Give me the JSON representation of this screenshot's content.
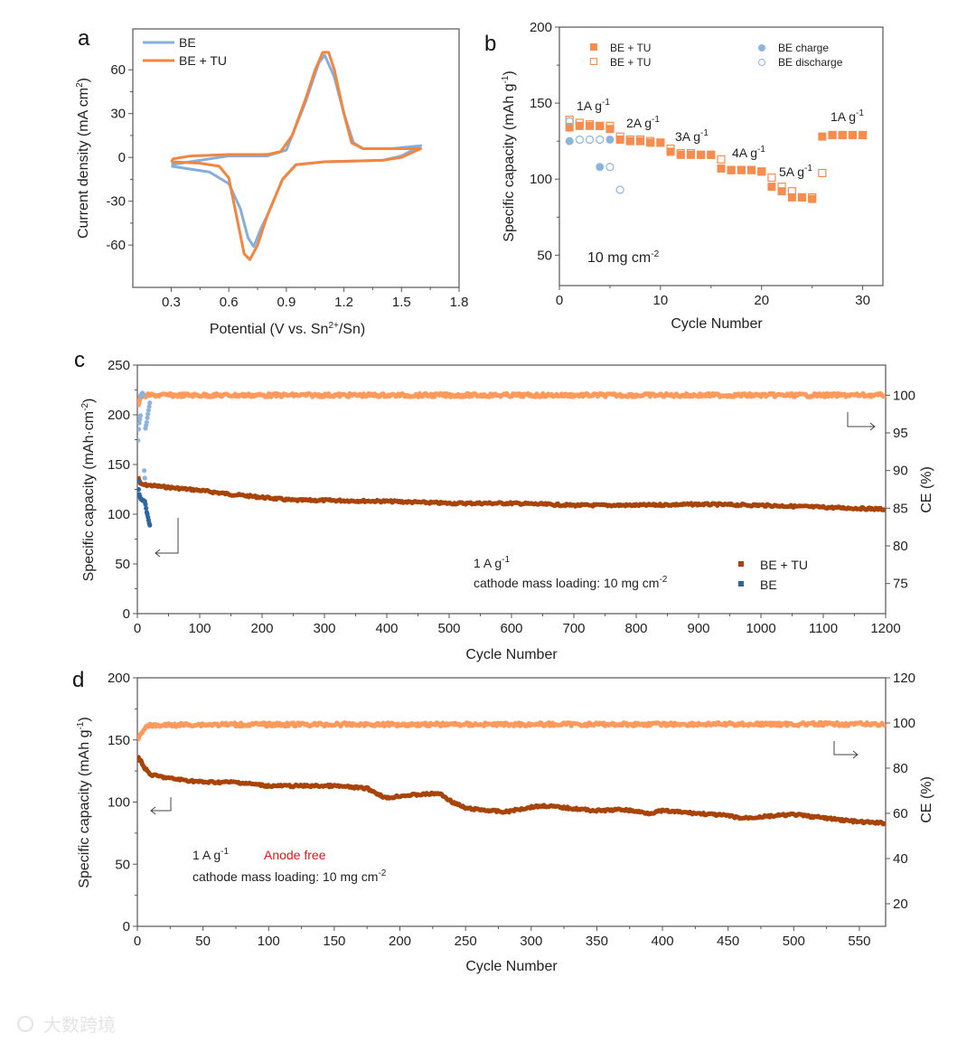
{
  "colors": {
    "orange": "#F68D4E",
    "orange_light": "#FF9A5C",
    "brown": "#A84409",
    "blue_light": "#8FB4DC",
    "blue_dark": "#2E66A3",
    "cv_blue": "#86AEDB",
    "cv_orange": "#F2853F",
    "red": "#E8141B"
  },
  "watermark": "大数跨境",
  "chart_data": [
    {
      "panel": "a",
      "type": "line",
      "panel_label": "a",
      "xlabel": "Potential (V vs. Sn",
      "xlabel_sup": "2+",
      "xlabel_end": "/Sn)",
      "ylabel": "Current density (mA cm",
      "ylabel_sup": "2",
      "ylabel_end": ")",
      "xlim": [
        0.1,
        1.8
      ],
      "ylim": [
        -89,
        88
      ],
      "xticks": [
        0.3,
        0.6,
        0.9,
        1.2,
        1.5,
        1.8
      ],
      "yticks": [
        -60,
        -30,
        0,
        30,
        60
      ],
      "legend": [
        "BE",
        "BE + TU"
      ],
      "legend_position": "top-left",
      "series": [
        {
          "name": "BE",
          "color_key": "cv_blue",
          "x": [
            0.3,
            0.4,
            0.5,
            0.6,
            0.8,
            0.9,
            1.0,
            1.07,
            1.1,
            1.15,
            1.2,
            1.25,
            1.3,
            1.45,
            1.6,
            1.6,
            1.5,
            1.4,
            1.1,
            0.95,
            0.88,
            0.8,
            0.77,
            0.73,
            0.7,
            0.66,
            0.6,
            0.5,
            0.4,
            0.3
          ],
          "y": [
            -5,
            -3,
            -1,
            1,
            1,
            5,
            38,
            65,
            70,
            55,
            30,
            10,
            6,
            6,
            8,
            8,
            1,
            -2,
            -3,
            -5,
            -15,
            -40,
            -48,
            -61,
            -55,
            -35,
            -18,
            -10,
            -8,
            -6
          ]
        },
        {
          "name": "BE + TU",
          "color_key": "cv_orange",
          "x": [
            0.3,
            0.31,
            0.4,
            0.6,
            0.8,
            0.87,
            0.93,
            1.0,
            1.05,
            1.09,
            1.12,
            1.15,
            1.2,
            1.24,
            1.3,
            1.5,
            1.6,
            1.6,
            1.5,
            1.4,
            1.1,
            0.95,
            0.88,
            0.8,
            0.75,
            0.71,
            0.68,
            0.64,
            0.6,
            0.55,
            0.45,
            0.3,
            0.3
          ],
          "y": [
            -3,
            -1,
            1,
            2,
            2,
            4,
            15,
            40,
            60,
            72,
            72,
            60,
            30,
            10,
            6,
            6,
            6,
            6,
            0,
            -2,
            -3,
            -5,
            -15,
            -40,
            -60,
            -70,
            -66,
            -40,
            -14,
            -6,
            -4,
            -3,
            -3
          ]
        }
      ]
    },
    {
      "panel": "b",
      "type": "scatter",
      "panel_label": "b",
      "xlabel": "Cycle Number",
      "ylabel": "Specific capacity (mAh g",
      "ylabel_sup": "-1",
      "ylabel_end": ")",
      "xlim": [
        0,
        32
      ],
      "ylim": [
        30,
        200
      ],
      "xticks": [
        0,
        10,
        20,
        30
      ],
      "yticks": [
        50,
        100,
        150,
        200
      ],
      "legend_position": "top",
      "annotations": [
        {
          "text": "1A g",
          "sup": "-1"
        },
        {
          "text": "2A g",
          "sup": "-1"
        },
        {
          "text": "3A g",
          "sup": "-1"
        },
        {
          "text": "4A g",
          "sup": "-1"
        },
        {
          "text": "5A g",
          "sup": "-1"
        },
        {
          "text": "1A g",
          "sup": "-1"
        }
      ],
      "loading_text": "10 mg cm",
      "loading_sup": "-2",
      "series": [
        {
          "name": "BE + TU",
          "marker": "filled-square",
          "color_key": "orange",
          "x": [
            1,
            2,
            3,
            4,
            5,
            6,
            7,
            8,
            9,
            10,
            11,
            12,
            13,
            14,
            15,
            16,
            17,
            18,
            19,
            20,
            21,
            22,
            23,
            24,
            25,
            26,
            27,
            28,
            29,
            30
          ],
          "y": [
            134,
            135,
            135,
            135,
            133,
            126,
            125,
            125,
            124,
            124,
            118,
            116,
            116,
            116,
            116,
            107,
            106,
            106,
            106,
            105,
            95,
            92,
            88,
            88,
            87,
            128,
            129,
            129,
            129,
            129
          ]
        },
        {
          "name": "BE + TU",
          "marker": "open-square",
          "color_key": "orange",
          "x": [
            1,
            2,
            3,
            4,
            5,
            6,
            7,
            8,
            9,
            10,
            11,
            12,
            13,
            14,
            15,
            16,
            17,
            18,
            19,
            20,
            21,
            22,
            23,
            24,
            25,
            26,
            27,
            28,
            29,
            30
          ],
          "y": [
            139,
            137,
            136,
            135,
            135,
            128,
            126,
            126,
            125,
            124,
            120,
            117,
            117,
            116,
            116,
            113,
            106,
            106,
            106,
            105,
            101,
            95,
            92,
            88,
            88,
            104,
            129,
            129,
            129,
            129
          ]
        },
        {
          "name": "BE charge",
          "marker": "filled-circle",
          "color_key": "blue_light",
          "x": [
            1,
            4,
            5
          ],
          "y": [
            125,
            108,
            126
          ]
        },
        {
          "name": "BE discharge",
          "marker": "open-circle",
          "color_key": "blue_light",
          "x": [
            1,
            2,
            3,
            4,
            5,
            6
          ],
          "y": [
            138,
            126,
            126,
            126,
            108,
            93
          ]
        }
      ]
    },
    {
      "panel": "c",
      "type": "scatter",
      "panel_label": "c",
      "xlabel": "Cycle Number",
      "ylabel": "Specific capacity (mAh·cm",
      "ylabel_sup": "-2",
      "ylabel_end": ")",
      "y2label": "CE (%)",
      "xlim": [
        0,
        1200
      ],
      "ylim": [
        0,
        250
      ],
      "y2lim": [
        71,
        104
      ],
      "xticks": [
        0,
        100,
        200,
        300,
        400,
        500,
        600,
        700,
        800,
        900,
        1000,
        1100,
        1200
      ],
      "yticks": [
        0,
        50,
        100,
        150,
        200,
        250
      ],
      "y2ticks": [
        75,
        80,
        85,
        90,
        95,
        100
      ],
      "rate_text": "1 A g",
      "rate_sup": "-1",
      "loading_text": "cathode mass loading: 10 mg cm",
      "loading_sup": "-2",
      "legend": [
        "BE + TU",
        "BE"
      ],
      "legend_position": "bottom-right",
      "series": [
        {
          "name": "BE + TU capacity",
          "axis": "left",
          "color_key": "brown",
          "x": [
            1,
            5,
            50,
            100,
            150,
            200,
            250,
            300,
            400,
            500,
            600,
            700,
            800,
            900,
            1000,
            1100,
            1200
          ],
          "y": [
            138,
            130,
            127,
            124,
            120,
            117,
            114,
            114,
            113,
            111,
            111,
            109,
            109,
            110,
            109,
            107,
            105
          ]
        },
        {
          "name": "BE + TU CE",
          "axis": "right",
          "color_key": "orange_light",
          "x": [
            1,
            5,
            20,
            1200
          ],
          "y": [
            98.5,
            99.8,
            100,
            100
          ]
        },
        {
          "name": "BE capacity",
          "axis": "left",
          "color_key": "blue_dark",
          "x": [
            1,
            2,
            3,
            4,
            5,
            6,
            7,
            8,
            9,
            10,
            11,
            12,
            13,
            14,
            15,
            16,
            17,
            18,
            19,
            20
          ],
          "y": [
            133,
            125,
            120,
            118,
            116,
            115,
            115,
            114,
            114,
            114,
            113,
            113,
            110,
            106,
            102,
            100,
            97,
            94,
            91,
            89
          ]
        },
        {
          "name": "BE CE",
          "axis": "right",
          "color_key": "blue_light",
          "x": [
            1,
            2,
            3,
            4,
            5,
            6,
            7,
            8,
            9,
            10,
            11,
            12,
            13,
            14,
            15,
            16,
            17,
            18,
            19,
            20
          ],
          "y": [
            94,
            95.5,
            96.3,
            96.8,
            97.3,
            99.8,
            100.2,
            100.3,
            100,
            100,
            90,
            89,
            95.6,
            96,
            96.4,
            97,
            97.5,
            98,
            98.5,
            99
          ]
        }
      ]
    },
    {
      "panel": "d",
      "type": "line",
      "panel_label": "d",
      "xlabel": "Cycle Number",
      "ylabel": "Specific capacity (mAh g",
      "ylabel_sup": "-1",
      "ylabel_end": ")",
      "y2label": "CE (%)",
      "xlim": [
        0,
        570
      ],
      "ylim": [
        0,
        200
      ],
      "y2lim": [
        10,
        120
      ],
      "xticks": [
        0,
        50,
        100,
        150,
        200,
        250,
        300,
        350,
        400,
        450,
        500,
        550
      ],
      "yticks": [
        0,
        50,
        100,
        150,
        200
      ],
      "y2ticks": [
        20,
        40,
        60,
        80,
        100,
        120
      ],
      "rate_text": "1 A g",
      "rate_sup": "-1",
      "anode_text": "Anode free",
      "loading_text": "cathode mass loading: 10 mg cm",
      "loading_sup": "-2",
      "series": [
        {
          "name": "capacity",
          "axis": "left",
          "color_key": "brown",
          "x": [
            0,
            3,
            5,
            10,
            25,
            50,
            75,
            100,
            150,
            175,
            190,
            200,
            230,
            240,
            250,
            280,
            300,
            310,
            350,
            370,
            390,
            400,
            450,
            460,
            500,
            550,
            570
          ],
          "y": [
            136,
            133,
            128,
            122,
            119,
            116,
            116,
            113,
            113,
            111,
            103,
            105,
            107,
            100,
            95,
            92,
            96,
            97,
            93,
            94,
            91,
            93,
            89,
            87,
            90,
            84,
            83
          ]
        },
        {
          "name": "CE",
          "axis": "right",
          "color_key": "orange_light",
          "x": [
            0,
            3,
            6,
            10,
            40,
            570
          ],
          "y": [
            92,
            96,
            98,
            98.8,
            99.3,
            99.5
          ]
        }
      ]
    }
  ]
}
